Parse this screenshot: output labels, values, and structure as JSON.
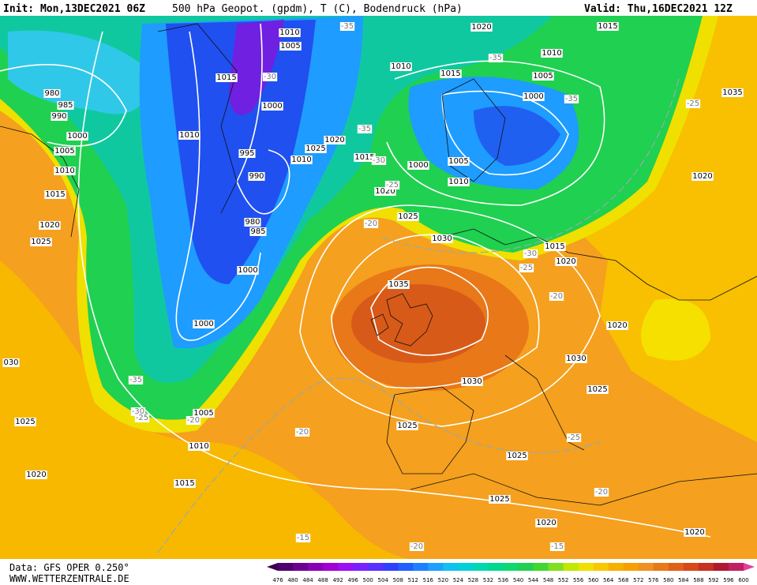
{
  "header": {
    "init": "Init: Mon,13DEC2021 06Z",
    "title": "500 hPa Geopot. (gpdm), T (C), Bodendruck (hPa)",
    "valid": "Valid: Thu,16DEC2021 12Z"
  },
  "footer": {
    "data": "Data: GFS OPER 0.250°",
    "site": "WWW.WETTERZENTRALE.DE"
  },
  "scale": {
    "labels": [
      "476",
      "480",
      "484",
      "488",
      "492",
      "496",
      "500",
      "504",
      "508",
      "512",
      "516",
      "520",
      "524",
      "528",
      "532",
      "536",
      "540",
      "544",
      "548",
      "552",
      "556",
      "560",
      "564",
      "568",
      "572",
      "576",
      "580",
      "584",
      "588",
      "592",
      "596",
      "600"
    ]
  },
  "map": {
    "pressure_labels": [
      "1010",
      "1005",
      "1015",
      "1000",
      "1010",
      "995",
      "990",
      "980",
      "985",
      "1000",
      "1000",
      "1025",
      "1020",
      "1010",
      "1015",
      "1020",
      "1025",
      "1030",
      "1035",
      "1030",
      "1025",
      "1025",
      "1025",
      "1020",
      "1020",
      "1030",
      "1025",
      "1020",
      "1015",
      "1020",
      "1020",
      "1035",
      "1015",
      "1020",
      "1010",
      "1005",
      "1000",
      "1010",
      "1015",
      "1010",
      "1005",
      "1000",
      "980",
      "985",
      "990",
      "1000",
      "1005",
      "1010",
      "1015",
      "1020",
      "1025",
      "1025",
      "1020",
      "1015",
      "1010",
      "1005",
      "030"
    ],
    "temperature_labels": [
      "-35",
      "-35",
      "-35",
      "-30",
      "-35",
      "-30",
      "-25",
      "-20",
      "-25",
      "-20",
      "-30",
      "-25",
      "-20",
      "-25",
      "-20",
      "-15",
      "-20",
      "-15",
      "-35",
      "-30",
      "-25",
      "-20"
    ]
  }
}
